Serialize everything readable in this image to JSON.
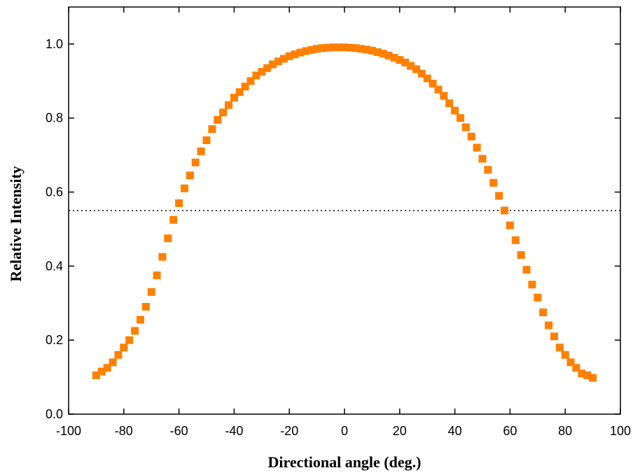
{
  "chart_data": {
    "type": "scatter",
    "x_label": "Directional angle (deg.)",
    "y_label": "Relative Intensity",
    "color": "#ff8000",
    "x": [
      -90,
      -88,
      -86,
      -84,
      -82,
      -80,
      -78,
      -76,
      -74,
      -72,
      -70,
      -68,
      -66,
      -64,
      -62,
      -60,
      -58,
      -56,
      -54,
      -52,
      -50,
      -48,
      -46,
      -44,
      -42,
      -40,
      -38,
      -36,
      -34,
      -32,
      -30,
      -28,
      -26,
      -24,
      -22,
      -20,
      -18,
      -16,
      -14,
      -12,
      -10,
      -8,
      -6,
      -4,
      -2,
      0,
      2,
      4,
      6,
      8,
      10,
      12,
      14,
      16,
      18,
      20,
      22,
      24,
      26,
      28,
      30,
      32,
      34,
      36,
      38,
      40,
      42,
      44,
      46,
      48,
      50,
      52,
      54,
      56,
      58,
      60,
      62,
      64,
      66,
      68,
      70,
      72,
      74,
      76,
      78,
      80,
      82,
      84,
      86,
      88,
      90
    ],
    "values": [
      0.105,
      0.115,
      0.125,
      0.14,
      0.16,
      0.18,
      0.2,
      0.225,
      0.255,
      0.29,
      0.33,
      0.375,
      0.425,
      0.475,
      0.525,
      0.57,
      0.61,
      0.645,
      0.68,
      0.71,
      0.74,
      0.77,
      0.795,
      0.815,
      0.835,
      0.855,
      0.87,
      0.885,
      0.9,
      0.915,
      0.925,
      0.935,
      0.945,
      0.953,
      0.96,
      0.967,
      0.972,
      0.977,
      0.981,
      0.984,
      0.987,
      0.989,
      0.99,
      0.991,
      0.991,
      0.991,
      0.99,
      0.989,
      0.987,
      0.985,
      0.982,
      0.978,
      0.974,
      0.969,
      0.963,
      0.957,
      0.95,
      0.941,
      0.932,
      0.92,
      0.907,
      0.893,
      0.877,
      0.86,
      0.84,
      0.82,
      0.8,
      0.775,
      0.75,
      0.72,
      0.69,
      0.66,
      0.625,
      0.59,
      0.55,
      0.51,
      0.47,
      0.43,
      0.39,
      0.35,
      0.315,
      0.275,
      0.24,
      0.21,
      0.18,
      0.16,
      0.14,
      0.125,
      0.11,
      0.105,
      0.098
    ],
    "hline": 0.55,
    "xlim": [
      -100,
      100
    ],
    "xticks": [
      -100,
      -80,
      -60,
      -40,
      -20,
      0,
      20,
      40,
      60,
      80,
      100
    ],
    "ylim": [
      0,
      1.1
    ],
    "yticks": [
      {
        "value": 0,
        "label": "0.0"
      },
      0.2,
      0.4,
      0.6,
      0.8,
      {
        "value": 1,
        "label": "1.0"
      }
    ]
  }
}
